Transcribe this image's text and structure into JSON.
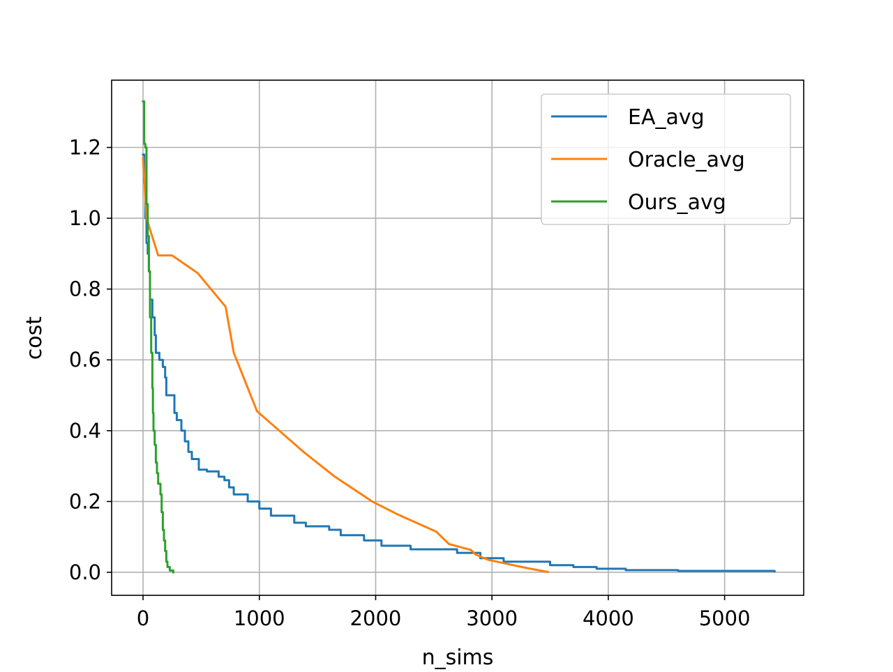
{
  "chart_data": {
    "type": "line",
    "title": "",
    "xlabel": "n_sims",
    "ylabel": "cost",
    "xlim": [
      -270,
      5680
    ],
    "ylim": [
      -0.065,
      1.39
    ],
    "x_ticks": [
      0,
      1000,
      2000,
      3000,
      4000,
      5000
    ],
    "y_ticks": [
      0.0,
      0.2,
      0.4,
      0.6,
      0.8,
      1.0,
      1.2
    ],
    "x_tick_labels": [
      "0",
      "1000",
      "2000",
      "3000",
      "4000",
      "5000"
    ],
    "y_tick_labels": [
      "0.0",
      "0.2",
      "0.4",
      "0.6",
      "0.8",
      "1.0",
      "1.2"
    ],
    "grid": true,
    "legend_position": "top-right",
    "series": [
      {
        "name": "EA_avg",
        "color": "#1f77b4",
        "step": true,
        "points": [
          [
            0,
            1.18
          ],
          [
            10,
            1.1
          ],
          [
            20,
            1.0
          ],
          [
            30,
            0.93
          ],
          [
            40,
            0.9
          ],
          [
            50,
            0.85
          ],
          [
            60,
            0.77
          ],
          [
            80,
            0.72
          ],
          [
            100,
            0.67
          ],
          [
            110,
            0.62
          ],
          [
            140,
            0.6
          ],
          [
            170,
            0.58
          ],
          [
            190,
            0.55
          ],
          [
            200,
            0.5
          ],
          [
            270,
            0.45
          ],
          [
            290,
            0.43
          ],
          [
            330,
            0.4
          ],
          [
            360,
            0.37
          ],
          [
            390,
            0.34
          ],
          [
            420,
            0.32
          ],
          [
            480,
            0.29
          ],
          [
            550,
            0.285
          ],
          [
            650,
            0.27
          ],
          [
            700,
            0.26
          ],
          [
            740,
            0.24
          ],
          [
            780,
            0.22
          ],
          [
            900,
            0.2
          ],
          [
            1000,
            0.18
          ],
          [
            1100,
            0.16
          ],
          [
            1300,
            0.14
          ],
          [
            1400,
            0.13
          ],
          [
            1600,
            0.12
          ],
          [
            1700,
            0.105
          ],
          [
            1900,
            0.09
          ],
          [
            2050,
            0.075
          ],
          [
            2300,
            0.065
          ],
          [
            2700,
            0.055
          ],
          [
            2900,
            0.04
          ],
          [
            3100,
            0.03
          ],
          [
            3500,
            0.02
          ],
          [
            3700,
            0.015
          ],
          [
            3900,
            0.01
          ],
          [
            4150,
            0.006
          ],
          [
            4600,
            0.004
          ],
          [
            5430,
            0.003
          ]
        ]
      },
      {
        "name": "Oracle_avg",
        "color": "#ff7f0e",
        "step": false,
        "points": [
          [
            0,
            1.17
          ],
          [
            30,
            1.0
          ],
          [
            130,
            0.895
          ],
          [
            250,
            0.895
          ],
          [
            470,
            0.845
          ],
          [
            710,
            0.75
          ],
          [
            780,
            0.62
          ],
          [
            980,
            0.455
          ],
          [
            1380,
            0.34
          ],
          [
            1650,
            0.27
          ],
          [
            1970,
            0.2
          ],
          [
            2180,
            0.165
          ],
          [
            2520,
            0.115
          ],
          [
            2630,
            0.08
          ],
          [
            2820,
            0.063
          ],
          [
            2860,
            0.05
          ],
          [
            2970,
            0.035
          ],
          [
            3300,
            0.012
          ],
          [
            3480,
            0.001
          ]
        ]
      },
      {
        "name": "Ours_avg",
        "color": "#2ca02c",
        "step": true,
        "points": [
          [
            0,
            1.33
          ],
          [
            10,
            1.21
          ],
          [
            20,
            1.2
          ],
          [
            30,
            1.04
          ],
          [
            40,
            0.95
          ],
          [
            50,
            0.85
          ],
          [
            60,
            0.72
          ],
          [
            70,
            0.62
          ],
          [
            80,
            0.52
          ],
          [
            85,
            0.45
          ],
          [
            90,
            0.4
          ],
          [
            100,
            0.36
          ],
          [
            110,
            0.31
          ],
          [
            120,
            0.28
          ],
          [
            130,
            0.25
          ],
          [
            150,
            0.22
          ],
          [
            160,
            0.17
          ],
          [
            170,
            0.12
          ],
          [
            180,
            0.09
          ],
          [
            190,
            0.06
          ],
          [
            200,
            0.03
          ],
          [
            210,
            0.015
          ],
          [
            230,
            0.005
          ],
          [
            260,
            0.0
          ]
        ]
      }
    ]
  }
}
